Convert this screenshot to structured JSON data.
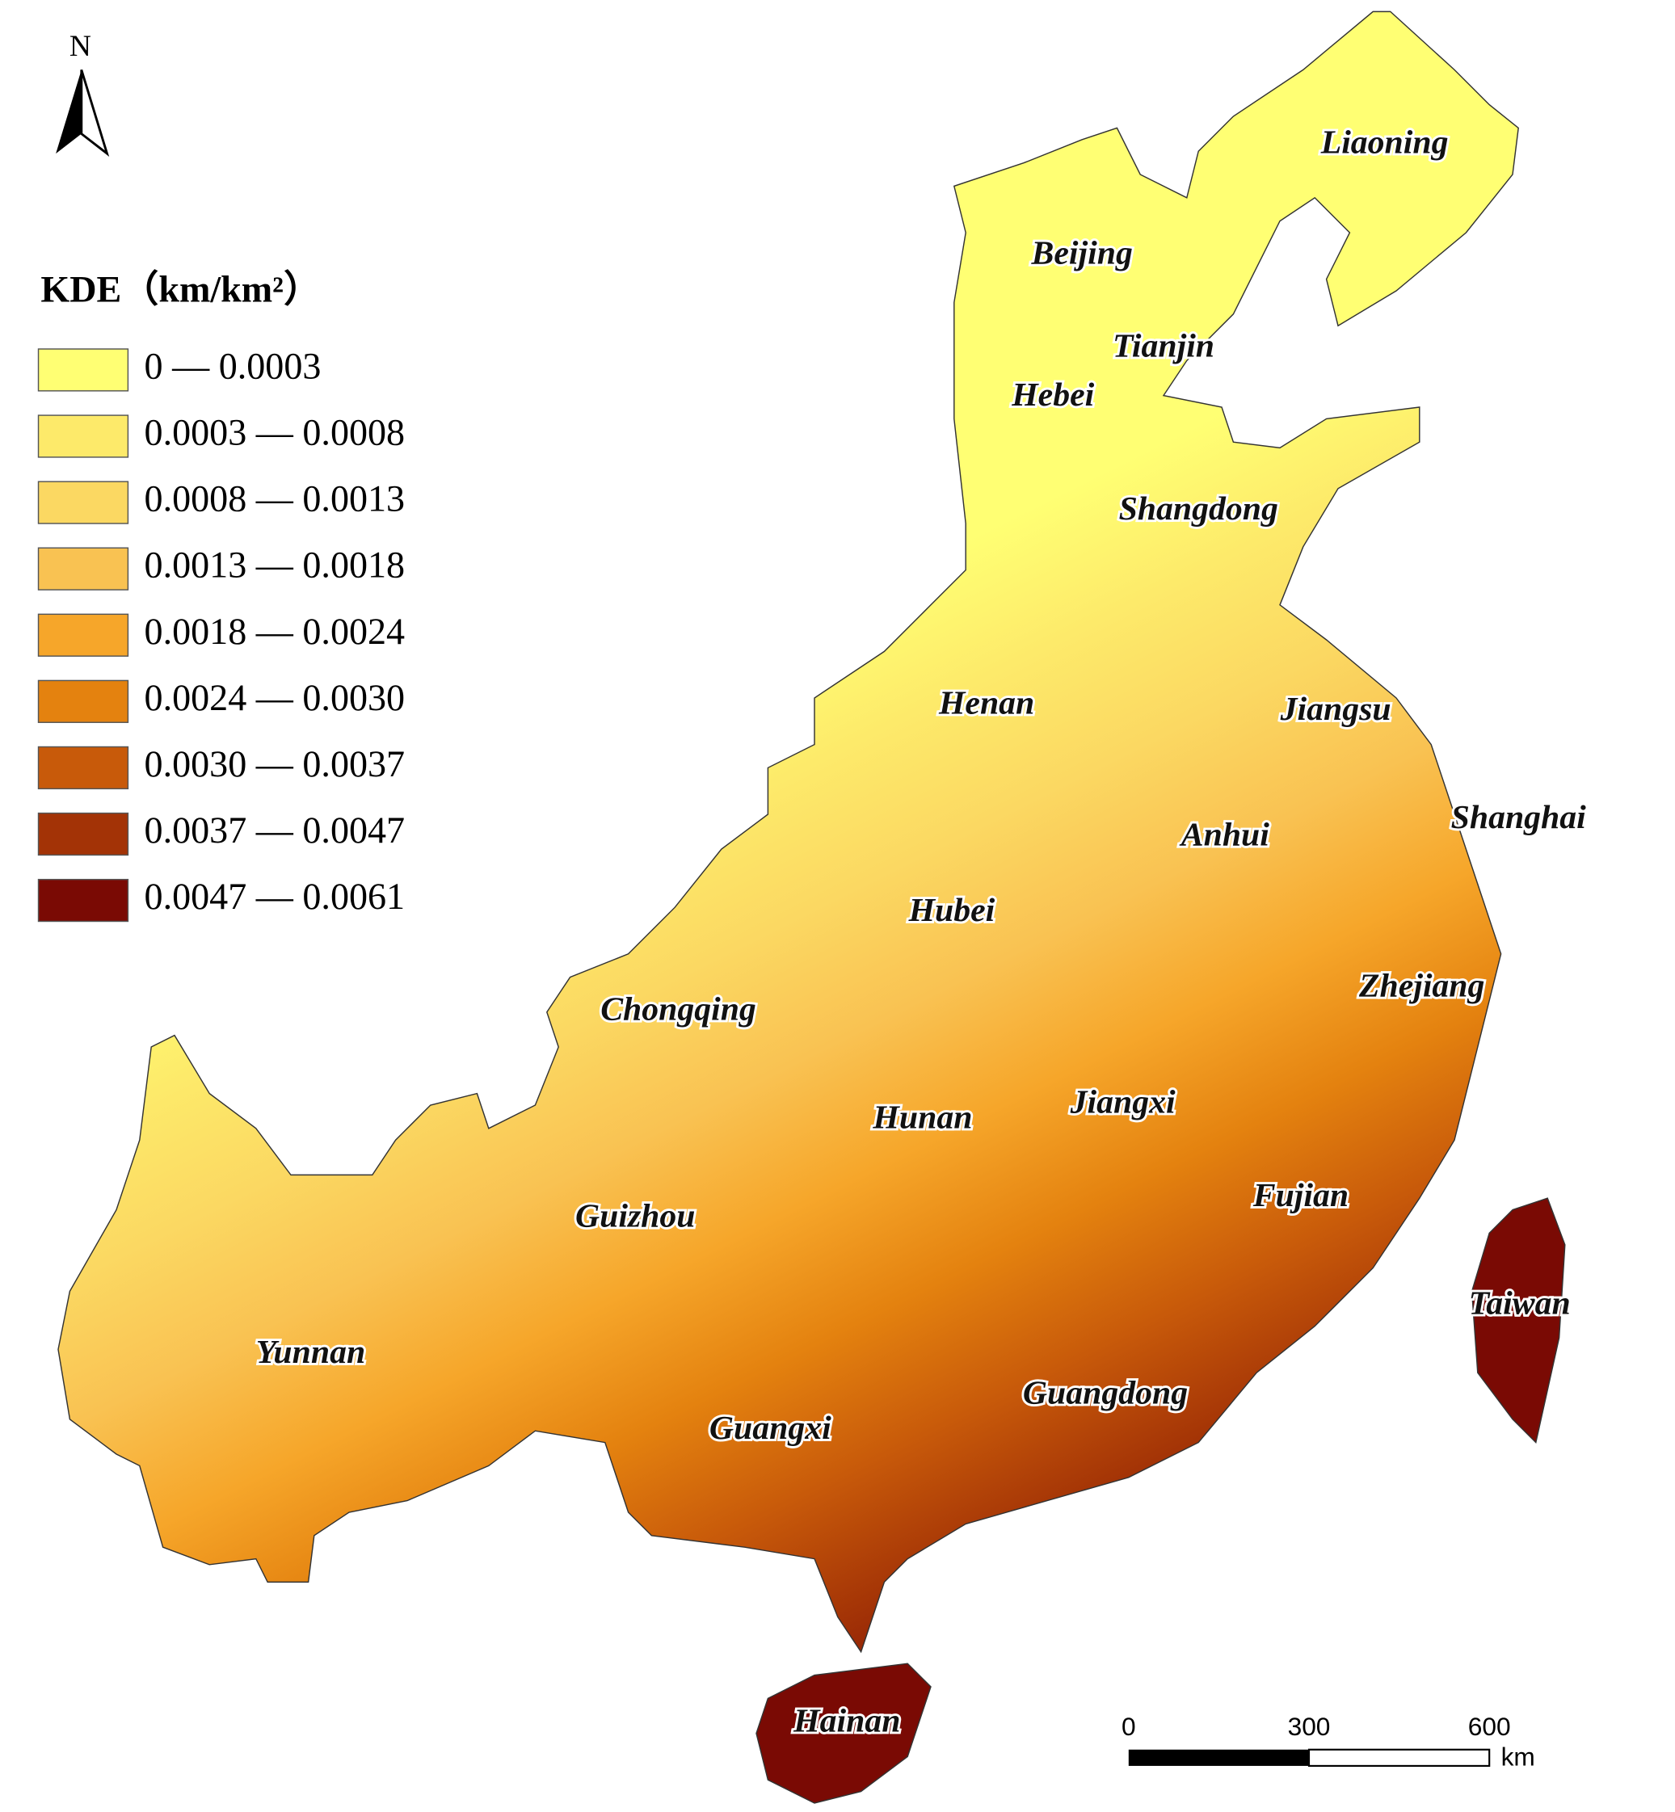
{
  "north_arrow": "N",
  "legend": {
    "title": "KDE（km/km²）",
    "items": [
      {
        "label": "0 — 0.0003",
        "color": "#ffff73"
      },
      {
        "label": "0.0003 — 0.0008",
        "color": "#fdea6a"
      },
      {
        "label": "0.0008 — 0.0013",
        "color": "#fbd862"
      },
      {
        "label": "0.0013 — 0.0018",
        "color": "#f9c252"
      },
      {
        "label": "0.0018 — 0.0024",
        "color": "#f6a62a"
      },
      {
        "label": "0.0024 — 0.0030",
        "color": "#e4820f"
      },
      {
        "label": "0.0030 — 0.0037",
        "color": "#c85a0a"
      },
      {
        "label": "0.0037 — 0.0047",
        "color": "#a33306"
      },
      {
        "label": "0.0047 — 0.0061",
        "color": "#7a0a04"
      }
    ]
  },
  "provinces": [
    "Liaoning",
    "Beijing",
    "Tianjin",
    "Hebei",
    "Shangdong",
    "Henan",
    "Jiangsu",
    "Shanghai",
    "Anhui",
    "Hubei",
    "Zhejiang",
    "Chongqing",
    "Jiangxi",
    "Hunan",
    "Fujian",
    "Guizhou",
    "Taiwan",
    "Yunnan",
    "Guangdong",
    "Guangxi",
    "Hainan"
  ],
  "scale_bar": {
    "labels": [
      "0",
      "300",
      "600"
    ],
    "unit": "km"
  }
}
